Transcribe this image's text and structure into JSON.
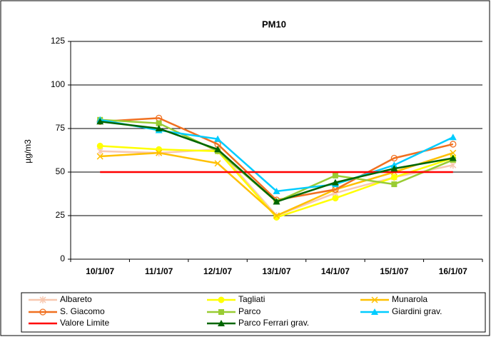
{
  "chart_data": {
    "type": "line",
    "title": "PM10",
    "y_label": "µg/m3",
    "categories": [
      "10/1/07",
      "11/1/07",
      "12/1/07",
      "13/1/07",
      "14/1/07",
      "15/1/07",
      "16/1/07"
    ],
    "ylim": [
      0,
      125
    ],
    "yticks": [
      0,
      25,
      50,
      75,
      100,
      125
    ],
    "grid": true,
    "legend": "bottom",
    "series": [
      {
        "name": "Albareto",
        "color": "#f8c8b0",
        "marker": "star",
        "values": [
          62,
          61,
          63,
          25,
          38,
          47,
          54
        ]
      },
      {
        "name": "Tagliati",
        "color": "#ffff00",
        "marker": "circle",
        "values": [
          65,
          63,
          62,
          24,
          35,
          47,
          58
        ]
      },
      {
        "name": "Munarola",
        "color": "#ffc000",
        "marker": "x",
        "values": [
          59,
          61,
          55,
          25,
          40,
          50,
          61
        ]
      },
      {
        "name": "S. Giacomo",
        "color": "#f07020",
        "marker": "open-circle",
        "values": [
          79,
          81,
          66,
          34,
          40,
          58,
          66
        ]
      },
      {
        "name": "Parco",
        "color": "#99cc33",
        "marker": "square",
        "values": [
          80,
          78,
          62,
          33,
          48,
          43,
          57
        ]
      },
      {
        "name": "Giardini grav.",
        "color": "#00ccff",
        "marker": "triangle",
        "values": [
          80,
          74,
          69,
          39,
          43,
          54,
          70
        ]
      },
      {
        "name": "Valore Limite",
        "color": "#ff0000",
        "marker": "none",
        "values": [
          50,
          50,
          50,
          50,
          50,
          50,
          50
        ]
      },
      {
        "name": "Parco Ferrari grav.",
        "color": "#006600",
        "marker": "triangle",
        "values": [
          79,
          75,
          63,
          33,
          44,
          52,
          58
        ]
      }
    ]
  }
}
